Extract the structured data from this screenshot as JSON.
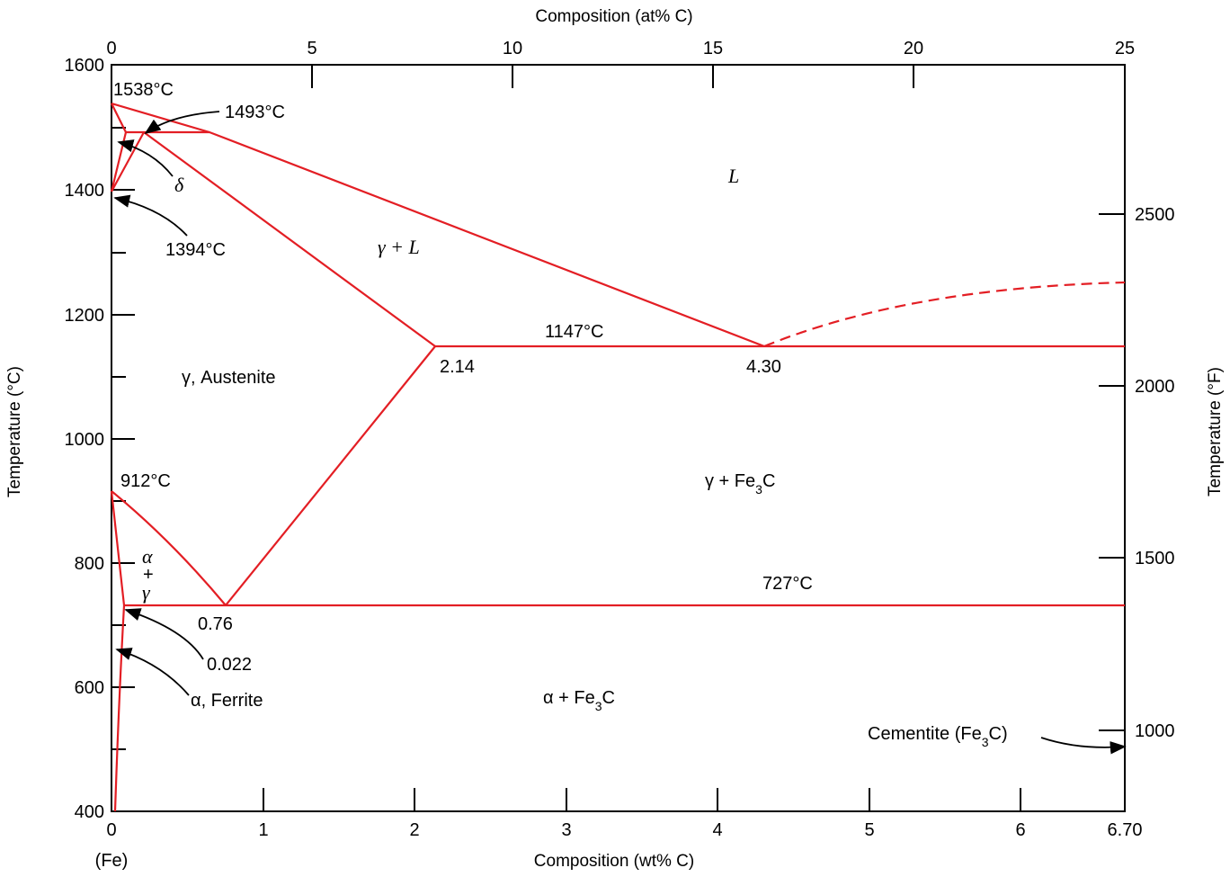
{
  "axes": {
    "top_title": "Composition (at% C)",
    "bottom_title": "Composition (wt% C)",
    "left_title": "Temperature (°C)",
    "right_title": "Temperature (°F)",
    "bottom_ticks": [
      "0",
      "1",
      "2",
      "3",
      "4",
      "5",
      "6",
      "6.70"
    ],
    "bottom_origin_note": "(Fe)",
    "top_ticks": [
      "0",
      "5",
      "10",
      "15",
      "20",
      "25"
    ],
    "left_ticks": [
      "400",
      "600",
      "800",
      "1000",
      "1200",
      "1400",
      "1600"
    ],
    "right_ticks": [
      "1000",
      "1500",
      "2000",
      "2500"
    ]
  },
  "annotations": {
    "t1538": "1538°C",
    "t1493": "1493°C",
    "delta": "δ",
    "t1394": "1394°C",
    "L": "L",
    "gamma_L": "γ + L",
    "t1147": "1147°C",
    "c214": "2.14",
    "c430": "4.30",
    "austenite": "γ, Austenite",
    "t912": "912°C",
    "gamma_fe3c_pre": "γ + Fe",
    "gamma_fe3c_sub": "3",
    "gamma_fe3c_post": "C",
    "alpha_gamma_1": "α",
    "alpha_gamma_2": "+",
    "alpha_gamma_3": "γ",
    "t727": "727°C",
    "c076": "0.76",
    "c0022": "0.022",
    "ferrite": "α, Ferrite",
    "alpha_fe3c_pre": "α + Fe",
    "alpha_fe3c_sub": "3",
    "alpha_fe3c_post": "C",
    "cementite_pre": "Cementite (Fe",
    "cementite_sub": "3",
    "cementite_post": "C)"
  },
  "colors": {
    "phase_lines": "#e31e24",
    "axes": "#000000"
  }
}
